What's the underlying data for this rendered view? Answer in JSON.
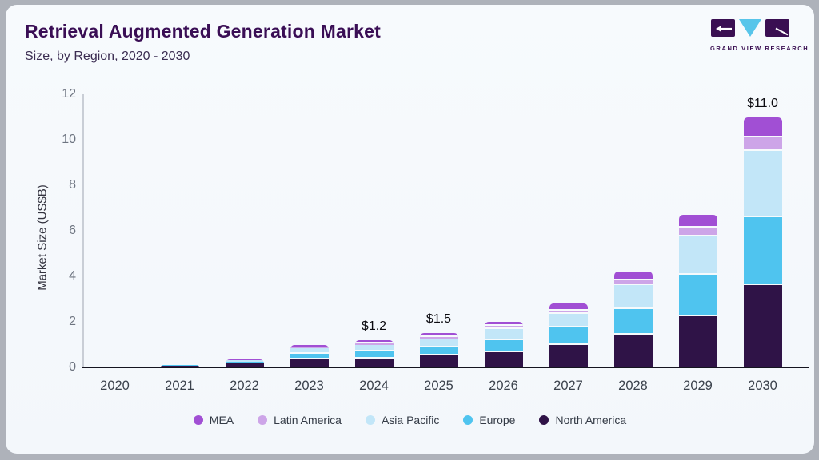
{
  "header": {
    "title": "Retrieval Augmented Generation Market",
    "subtitle": "Size, by Region, 2020 - 2030"
  },
  "logo": {
    "text": "GRAND VIEW RESEARCH",
    "purple": "#3a0f52",
    "blue": "#58c5ea"
  },
  "chart_data": {
    "type": "bar",
    "stacked": true,
    "title": "Retrieval Augmented Generation Market",
    "xlabel": "",
    "ylabel": "Market Size (US$B)",
    "ylim": [
      0,
      12
    ],
    "yticks": [
      0,
      2,
      4,
      6,
      8,
      10,
      12
    ],
    "grid": false,
    "legend_position": "bottom",
    "categories": [
      "2020",
      "2021",
      "2022",
      "2023",
      "2024",
      "2025",
      "2026",
      "2027",
      "2028",
      "2029",
      "2030"
    ],
    "series": [
      {
        "name": "North America",
        "color": "#2f1347",
        "values": [
          0.02,
          0.07,
          0.16,
          0.34,
          0.4,
          0.52,
          0.67,
          0.98,
          1.43,
          2.24,
          3.6
        ]
      },
      {
        "name": "Europe",
        "color": "#4fc4ef",
        "values": [
          0.01,
          0.03,
          0.09,
          0.24,
          0.3,
          0.36,
          0.54,
          0.76,
          1.13,
          1.82,
          3.0
        ]
      },
      {
        "name": "Asia Pacific",
        "color": "#c2e6f8",
        "values": [
          0.01,
          0.02,
          0.07,
          0.27,
          0.27,
          0.35,
          0.47,
          0.61,
          1.06,
          1.7,
          2.9
        ]
      },
      {
        "name": "Latin America",
        "color": "#cda5e8",
        "values": [
          0.0,
          0.0,
          0.01,
          0.07,
          0.08,
          0.1,
          0.14,
          0.15,
          0.2,
          0.37,
          0.6
        ]
      },
      {
        "name": "MEA",
        "color": "#a14fd4",
        "values": [
          0.0,
          0.0,
          0.02,
          0.08,
          0.15,
          0.17,
          0.18,
          0.3,
          0.38,
          0.57,
          0.9
        ]
      }
    ],
    "totals": [
      0.04,
      0.12,
      0.35,
      1.0,
      1.2,
      1.5,
      2.0,
      2.8,
      4.2,
      6.7,
      11.0
    ],
    "bar_labels": {
      "2024": "$1.2",
      "2025": "$1.5",
      "2030": "$11.0"
    },
    "legend": [
      "MEA",
      "Latin America",
      "Asia Pacific",
      "Europe",
      "North America"
    ]
  }
}
